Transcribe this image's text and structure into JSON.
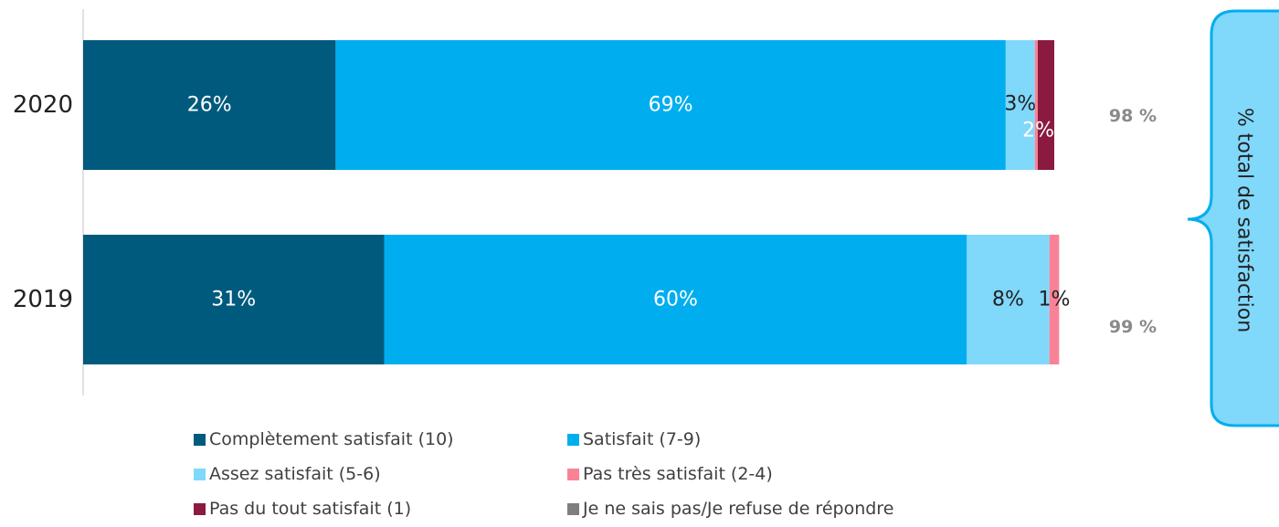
{
  "chart_data": {
    "type": "bar",
    "orientation": "horizontal",
    "stacked": true,
    "categories": [
      "2020",
      "2019"
    ],
    "series": [
      {
        "name": "Complètement satisfait (10)",
        "color": "#005a7d",
        "values": [
          26,
          31
        ],
        "labels": [
          "26%",
          "31%"
        ],
        "label_color": "#ffffff"
      },
      {
        "name": "Satisfait (7-9)",
        "color": "#00aeef",
        "values": [
          69,
          60
        ],
        "labels": [
          "69%",
          "60%"
        ],
        "label_color": "#ffffff"
      },
      {
        "name": "Assez satisfait (5-6)",
        "color": "#80d8fb",
        "values": [
          3,
          8.5
        ],
        "labels": [
          "3%",
          "8%"
        ],
        "label_color": "#222222"
      },
      {
        "name": "Pas très satisfait (2-4)",
        "color": "#fa8296",
        "values": [
          0.3,
          1
        ],
        "labels": [
          "",
          "1%"
        ],
        "label_color": "#222222"
      },
      {
        "name": "Pas du tout satisfait (1)",
        "color": "#8b1a40",
        "values": [
          1.7,
          0
        ],
        "labels": [
          "2%",
          ""
        ],
        "label_color": "#ffffff"
      },
      {
        "name": "Je ne sais pas/Je refuse de répondre",
        "color": "#7f7f7f",
        "values": [
          0,
          0
        ],
        "labels": [
          "",
          ""
        ],
        "label_color": "#ffffff"
      }
    ],
    "totals": [
      "98 %",
      "99 %"
    ],
    "callout": "% total de satisfaction",
    "xlim": [
      0,
      100
    ],
    "grid": false,
    "legend_position": "bottom"
  }
}
